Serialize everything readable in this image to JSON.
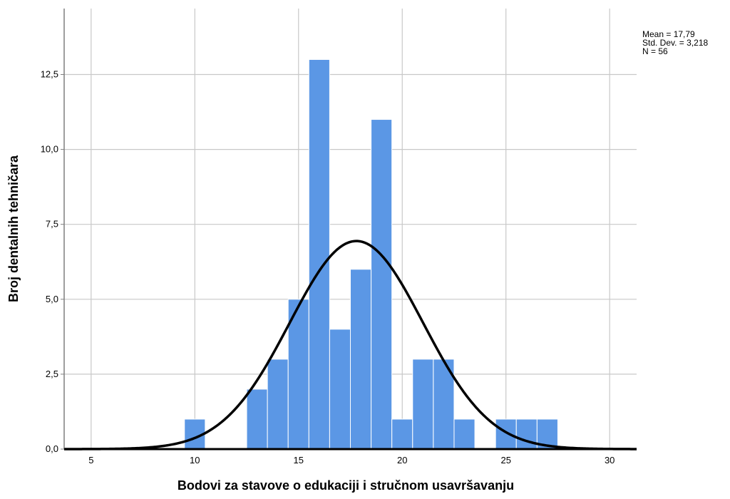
{
  "chart_data": {
    "type": "bar",
    "subtype": "histogram",
    "xlabel": "Bodovi za stavove o edukaciji i stručnom usavršavanju",
    "ylabel": "Broj dentalnih tehničara",
    "xlim": [
      3.7,
      31.3
    ],
    "ylim": [
      0,
      14.7
    ],
    "x_ticks": [
      5,
      10,
      15,
      20,
      25,
      30
    ],
    "y_ticks": [
      0,
      2.5,
      5,
      7.5,
      10,
      12.5
    ],
    "y_tick_labels": [
      "0,0",
      "2,5",
      "5,0",
      "7,5",
      "10,0",
      "12,5"
    ],
    "grid": true,
    "bar_color": "#5b97e5",
    "bins": [
      {
        "x": 10,
        "count": 1
      },
      {
        "x": 13,
        "count": 2
      },
      {
        "x": 14,
        "count": 3
      },
      {
        "x": 15,
        "count": 5
      },
      {
        "x": 16,
        "count": 13
      },
      {
        "x": 17,
        "count": 4
      },
      {
        "x": 18,
        "count": 6
      },
      {
        "x": 19,
        "count": 11
      },
      {
        "x": 20,
        "count": 1
      },
      {
        "x": 21,
        "count": 3
      },
      {
        "x": 22,
        "count": 3
      },
      {
        "x": 23,
        "count": 1
      },
      {
        "x": 25,
        "count": 1
      },
      {
        "x": 26,
        "count": 1
      },
      {
        "x": 27,
        "count": 1
      }
    ],
    "normal_curve": {
      "mean": 17.79,
      "std_dev": 3.218,
      "n": 56,
      "bin_width": 1,
      "color": "#000000"
    },
    "stats": {
      "mean_label": "Mean = 17,79",
      "std_label": "Std. Dev. = 3,218",
      "n_label": "N = 56"
    }
  }
}
